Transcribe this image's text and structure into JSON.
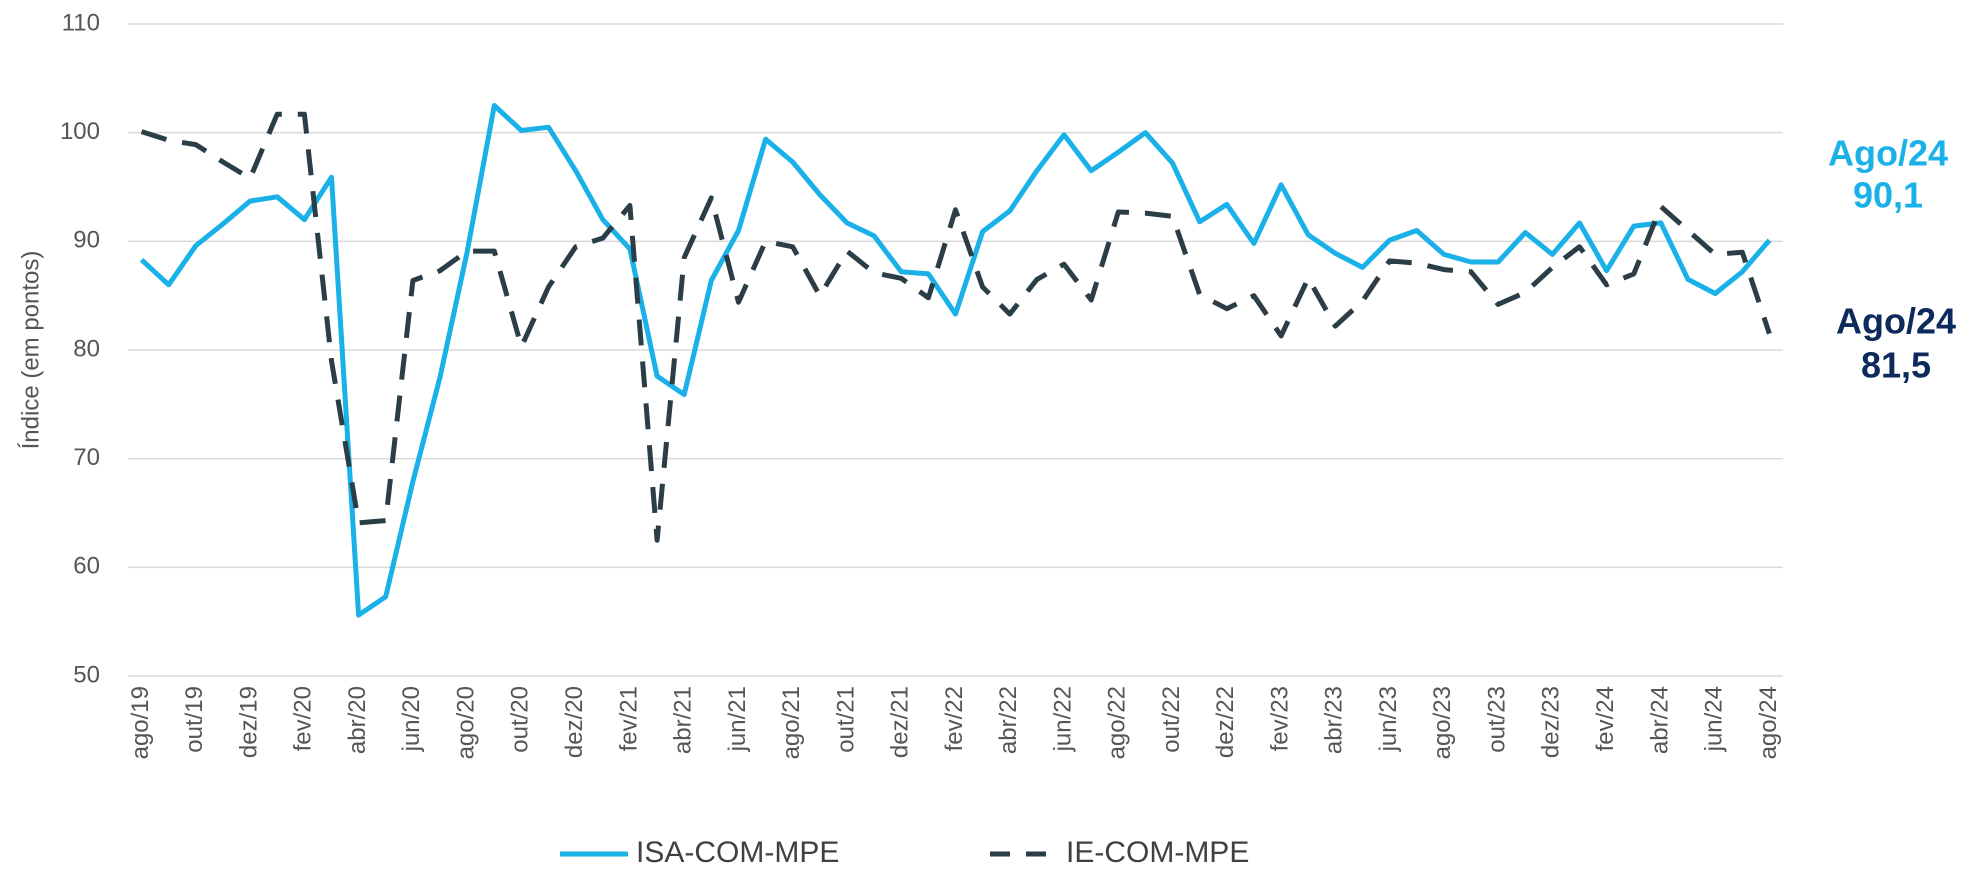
{
  "chart_data": {
    "type": "line",
    "y_label": "Índice (em pontos)",
    "categories": [
      "ago/19",
      null,
      "out/19",
      null,
      "dez/19",
      null,
      "fev/20",
      null,
      "abr/20",
      null,
      "jun/20",
      null,
      "ago/20",
      null,
      "out/20",
      null,
      "dez/20",
      null,
      "fev/21",
      null,
      "abr/21",
      null,
      "jun/21",
      null,
      "ago/21",
      null,
      "out/21",
      null,
      "dez/21",
      null,
      "fev/22",
      null,
      "abr/22",
      null,
      "jun/22",
      null,
      "ago/22",
      null,
      "out/22",
      null,
      "dez/22",
      null,
      "fev/23",
      null,
      "abr/23",
      null,
      "jun/23",
      null,
      "ago/23",
      null,
      "out/23",
      null,
      "dez/23",
      null,
      "fev/24",
      null,
      "abr/24",
      null,
      "jun/24",
      null,
      "ago/24"
    ],
    "series": [
      {
        "name": "ISA-COM-MPE",
        "color": "#1ab0e8",
        "style": "solid",
        "values": [
          88.3,
          86,
          89.6,
          91.6,
          93.7,
          94.1,
          92,
          95.9,
          55.6,
          57.3,
          67.9,
          77.5,
          89,
          102.5,
          100.2,
          100.5,
          96.5,
          92,
          89.3,
          77.6,
          75.9,
          86.4,
          91,
          99.4,
          97.3,
          94.3,
          91.7,
          90.5,
          87.2,
          87,
          83.3,
          90.9,
          92.8,
          96.5,
          99.8,
          96.5,
          98.2,
          100,
          97.2,
          91.8,
          93.4,
          89.8,
          95.2,
          90.6,
          88.9,
          87.6,
          90.1,
          91,
          88.8,
          88.1,
          88.1,
          90.8,
          88.8,
          91.7,
          87.3,
          91.4,
          91.7,
          86.5,
          85.2,
          87.2,
          90.1
        ]
      },
      {
        "name": "IE-COM-MPE",
        "color": "#2b3d47",
        "style": "dashed",
        "values": [
          100.1,
          99.3,
          98.9,
          97.3,
          95.8,
          101.7,
          101.7,
          79,
          64.1,
          64.3,
          86.4,
          87.3,
          89.1,
          89.1,
          80.3,
          85.8,
          89.5,
          90.3,
          93.3,
          62.5,
          88.5,
          94,
          84.4,
          90,
          89.5,
          85,
          89.1,
          87.1,
          86.6,
          84.8,
          92.9,
          85.8,
          83.3,
          86.5,
          87.9,
          84.6,
          92.7,
          92.6,
          92.3,
          85.1,
          83.8,
          85,
          81.3,
          86.6,
          82.2,
          84.5,
          88.2,
          88,
          87.4,
          87.2,
          84.2,
          85.3,
          87.6,
          89.5,
          86,
          87,
          93.2,
          91,
          88.8,
          89,
          81.5
        ]
      }
    ],
    "ylim": [
      50,
      110
    ],
    "yticks": [
      50,
      60,
      70,
      80,
      90,
      100,
      110
    ],
    "grid": true,
    "legend": "bottom",
    "annotations": [
      {
        "lines": [
          "Ago/24",
          "90,1"
        ],
        "color": "#1ab0e8"
      },
      {
        "lines": [
          "Ago/24",
          "81,5"
        ],
        "color": "#0d2a5c"
      }
    ]
  }
}
